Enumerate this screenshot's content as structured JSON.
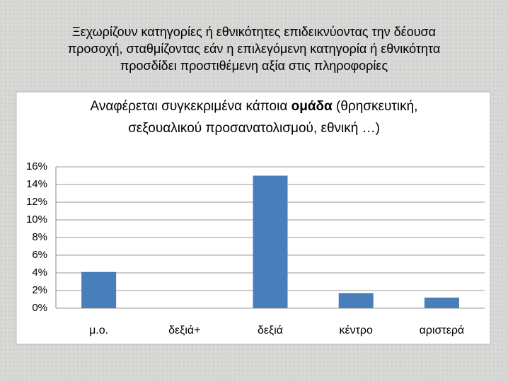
{
  "slide_title": [
    "Ξεχωρίζουν κατηγορίες ή εθνικότητες επιδεικνύοντας την δέουσα",
    "προσοχή, σταθμίζοντας εάν η επιλεγόμενη κατηγορία ή εθνικότητα",
    "προσδίδει προστιθέμενη αξία στις πληροφορίες"
  ],
  "chart_data": {
    "type": "bar",
    "title_lines": [
      [
        {
          "text": "Αναφέρεται συγκεκριμένα κάποια ",
          "bold": false
        },
        {
          "text": "ομάδα",
          "bold": true
        },
        {
          "text": " (θρησκευτική,",
          "bold": false
        }
      ],
      [
        {
          "text": "σεξουαλικού προσανατολισμού, εθνική …)",
          "bold": false
        }
      ]
    ],
    "categories": [
      "μ.ο.",
      "δεξιά+",
      "δεξιά",
      "κέντρο",
      "αριστερά"
    ],
    "values": [
      4.1,
      0,
      15,
      1.7,
      1.2
    ],
    "color": "#4a7ebb",
    "ylim": [
      0,
      16
    ],
    "yticks": [
      {
        "value": 0,
        "label": "0%"
      },
      {
        "value": 2,
        "label": "2%"
      },
      {
        "value": 4,
        "label": "4%"
      },
      {
        "value": 6,
        "label": "6%"
      },
      {
        "value": 8,
        "label": "8%"
      },
      {
        "value": 10,
        "label": "10%"
      },
      {
        "value": 12,
        "label": "12%"
      },
      {
        "value": 14,
        "label": "14%"
      },
      {
        "value": 16,
        "label": "16%"
      }
    ],
    "grid": true
  }
}
